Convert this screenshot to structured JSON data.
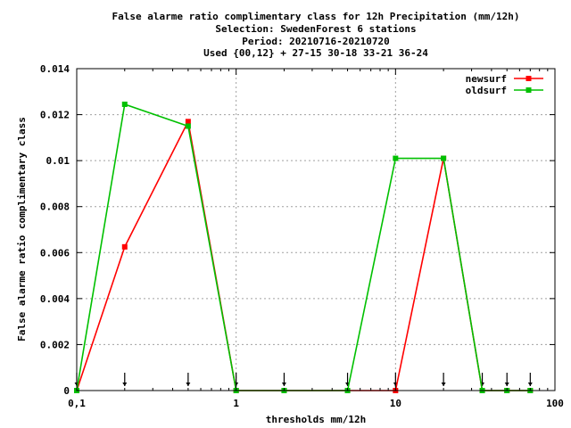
{
  "title_lines": [
    "False alarme ratio complimentary class  for 12h Precipitation (mm/12h)",
    "Selection: SwedenForest      6 stations",
    "Period: 20210716-20210720",
    "Used {00,12} + 27-15 30-18 33-21 36-24"
  ],
  "chart_data": {
    "type": "line",
    "xlabel": "thresholds mm/12h",
    "ylabel": "False alarme ratio complimentary class",
    "x_scale": "log",
    "xlim": [
      0.1,
      100
    ],
    "ylim": [
      0,
      0.014
    ],
    "x_ticks": [
      0.1,
      1,
      10,
      100
    ],
    "x_tick_labels": [
      "0,1",
      "1",
      "10",
      "100"
    ],
    "y_ticks": [
      0,
      0.002,
      0.004,
      0.006,
      0.008,
      0.01,
      0.012,
      0.014
    ],
    "y_tick_labels": [
      "0",
      "0.002",
      "0.004",
      "0.006",
      "0.008",
      "0.01",
      "0.012",
      "0.014"
    ],
    "grid": true,
    "legend_position": "top-right",
    "threshold_markers": [
      0.1,
      0.2,
      0.5,
      1,
      2,
      5,
      10,
      20,
      35,
      50,
      70
    ],
    "series": [
      {
        "name": "newsurf",
        "color": "#ff0000",
        "x": [
          0.1,
          0.2,
          0.5,
          1,
          2,
          5,
          10,
          20,
          35,
          50,
          70
        ],
        "y": [
          0,
          0.00625,
          0.0117,
          0,
          0,
          0,
          0,
          0.0101,
          0,
          0,
          0
        ]
      },
      {
        "name": "oldsurf",
        "color": "#00c000",
        "x": [
          0.1,
          0.2,
          0.5,
          1,
          2,
          5,
          10,
          20,
          35,
          50,
          70
        ],
        "y": [
          0,
          0.01245,
          0.0115,
          0,
          0,
          0,
          0.0101,
          0.0101,
          0,
          0,
          0
        ]
      }
    ]
  }
}
